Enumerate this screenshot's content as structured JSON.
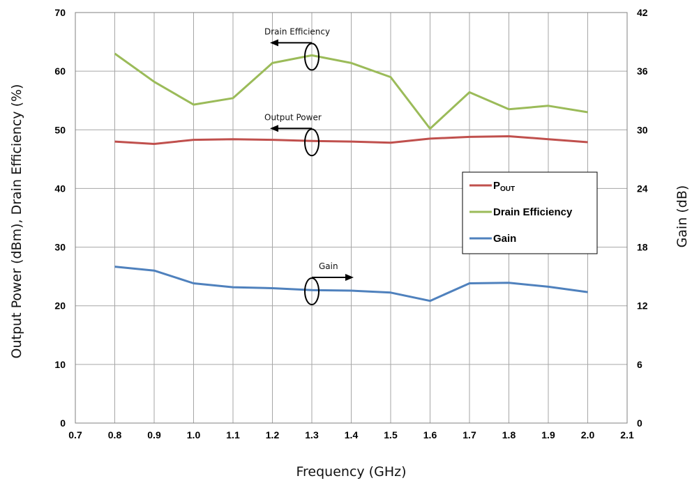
{
  "chart_data": {
    "type": "line",
    "xlabel": "Frequency (GHz)",
    "ylabel_left": "Output Power (dBm), Drain Efficiency (%)",
    "ylabel_right": "Gain (dB)",
    "xlim": [
      0.7,
      2.1
    ],
    "ylim_left": [
      0,
      70
    ],
    "ylim_right": [
      0,
      42
    ],
    "x_ticks": [
      "0.7",
      "0.8",
      "0.9",
      "1.0",
      "1.1",
      "1.2",
      "1.3",
      "1.4",
      "1.5",
      "1.6",
      "1.7",
      "1.8",
      "1.9",
      "2.0",
      "2.1"
    ],
    "y_ticks_left": [
      "0",
      "10",
      "20",
      "30",
      "40",
      "50",
      "60",
      "70"
    ],
    "y_ticks_right": [
      "0",
      "6",
      "12",
      "18",
      "24",
      "30",
      "36",
      "42"
    ],
    "grid": true,
    "x": [
      0.8,
      0.9,
      1.0,
      1.1,
      1.2,
      1.3,
      1.4,
      1.5,
      1.6,
      1.7,
      1.8,
      1.9,
      2.0
    ],
    "series": [
      {
        "key": "pout",
        "axis": "left",
        "color": "#c0504d",
        "values": [
          48.0,
          47.6,
          48.3,
          48.4,
          48.3,
          48.1,
          48.0,
          47.8,
          48.5,
          48.8,
          48.9,
          48.4,
          47.9
        ]
      },
      {
        "key": "de",
        "axis": "left",
        "color": "#9bbb59",
        "values": [
          63.0,
          58.2,
          54.3,
          55.4,
          61.4,
          62.7,
          61.4,
          59.0,
          50.2,
          56.4,
          53.5,
          54.1,
          53.0
        ]
      },
      {
        "key": "gain",
        "axis": "right",
        "color": "#4f81bd",
        "values": [
          16.0,
          15.6,
          14.3,
          13.9,
          13.8,
          13.6,
          13.55,
          13.35,
          12.5,
          14.3,
          14.35,
          13.95,
          13.4
        ]
      }
    ],
    "legend": {
      "position": "right-middle",
      "entries": [
        {
          "key": "pout",
          "label_main": "P",
          "label_sub": "OUT"
        },
        {
          "key": "de",
          "label_main": "Drain Efficiency",
          "label_sub": ""
        },
        {
          "key": "gain",
          "label_main": "Gain",
          "label_sub": ""
        }
      ]
    },
    "annotations": [
      {
        "text": "Drain Efficiency",
        "arrow": "left",
        "x": 1.3,
        "y": 62.7
      },
      {
        "text": "Output Power",
        "arrow": "left",
        "x": 1.3,
        "y": 48.1
      },
      {
        "text": "Gain",
        "arrow": "right",
        "x": 1.3,
        "y": 22.7
      }
    ]
  }
}
